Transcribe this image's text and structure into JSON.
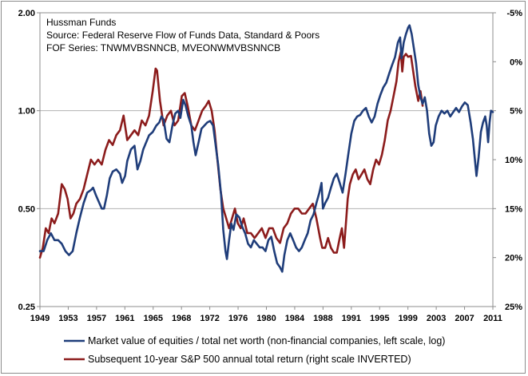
{
  "chart_data": {
    "type": "line",
    "title": "",
    "annotations": [
      "Hussman Funds",
      "Source: Federal Reserve Flow of Funds Data, Standard & Poors",
      "FOF Series: TNWMVBSNNCB, MVEONWMVBSNNCB"
    ],
    "x_ticks": [
      "1949",
      "1953",
      "1957",
      "1961",
      "1965",
      "1968",
      "1972",
      "1976",
      "1980",
      "1984",
      "1988",
      "1991",
      "1995",
      "1999",
      "2003",
      "2007",
      "2011"
    ],
    "x_range": [
      1949,
      2011.25
    ],
    "left_axis": {
      "scale": "log",
      "ticks": [
        "0.25",
        "0.50",
        "1.00",
        "2.00"
      ],
      "range": [
        0.25,
        2.0
      ]
    },
    "right_axis": {
      "scale": "linear-inverted",
      "ticks": [
        "-5%",
        "0%",
        "5%",
        "10%",
        "15%",
        "20%",
        "25%"
      ],
      "range_top": -5,
      "range_bottom": 25
    },
    "legend_position": "bottom",
    "grid": "horizontal",
    "series": [
      {
        "name": "Market value of equities / total net worth (non-financial companies, left scale, log)",
        "axis": "left",
        "color": "#1f3d7a",
        "points": [
          [
            1949.0,
            0.37
          ],
          [
            1949.5,
            0.37
          ],
          [
            1950.0,
            0.4
          ],
          [
            1950.5,
            0.42
          ],
          [
            1951.0,
            0.4
          ],
          [
            1951.5,
            0.4
          ],
          [
            1952.0,
            0.39
          ],
          [
            1952.5,
            0.37
          ],
          [
            1953.0,
            0.36
          ],
          [
            1953.5,
            0.37
          ],
          [
            1954.0,
            0.42
          ],
          [
            1954.5,
            0.47
          ],
          [
            1955.0,
            0.52
          ],
          [
            1955.5,
            0.56
          ],
          [
            1956.0,
            0.57
          ],
          [
            1956.3,
            0.58
          ],
          [
            1956.7,
            0.55
          ],
          [
            1957.0,
            0.53
          ],
          [
            1957.5,
            0.5
          ],
          [
            1957.8,
            0.5
          ],
          [
            1958.2,
            0.55
          ],
          [
            1958.6,
            0.62
          ],
          [
            1959.0,
            0.65
          ],
          [
            1959.5,
            0.66
          ],
          [
            1960.0,
            0.64
          ],
          [
            1960.3,
            0.6
          ],
          [
            1960.7,
            0.63
          ],
          [
            1961.0,
            0.7
          ],
          [
            1961.5,
            0.76
          ],
          [
            1962.0,
            0.78
          ],
          [
            1962.4,
            0.66
          ],
          [
            1962.8,
            0.7
          ],
          [
            1963.2,
            0.76
          ],
          [
            1963.6,
            0.8
          ],
          [
            1964.0,
            0.84
          ],
          [
            1964.5,
            0.86
          ],
          [
            1965.0,
            0.9
          ],
          [
            1965.4,
            0.92
          ],
          [
            1965.7,
            0.96
          ],
          [
            1966.0,
            0.94
          ],
          [
            1966.4,
            0.82
          ],
          [
            1966.8,
            0.8
          ],
          [
            1967.2,
            0.9
          ],
          [
            1967.6,
            0.98
          ],
          [
            1968.0,
            1.0
          ],
          [
            1968.3,
            0.95
          ],
          [
            1968.7,
            1.08
          ],
          [
            1969.0,
            1.04
          ],
          [
            1969.4,
            0.96
          ],
          [
            1969.8,
            0.9
          ],
          [
            1970.1,
            0.8
          ],
          [
            1970.4,
            0.73
          ],
          [
            1970.8,
            0.8
          ],
          [
            1971.2,
            0.88
          ],
          [
            1971.6,
            0.9
          ],
          [
            1972.0,
            0.92
          ],
          [
            1972.4,
            0.93
          ],
          [
            1972.8,
            0.9
          ],
          [
            1973.1,
            0.8
          ],
          [
            1973.5,
            0.68
          ],
          [
            1973.9,
            0.55
          ],
          [
            1974.2,
            0.43
          ],
          [
            1974.5,
            0.37
          ],
          [
            1974.7,
            0.35
          ],
          [
            1975.0,
            0.4
          ],
          [
            1975.3,
            0.45
          ],
          [
            1975.6,
            0.43
          ],
          [
            1976.0,
            0.48
          ],
          [
            1976.4,
            0.47
          ],
          [
            1976.8,
            0.44
          ],
          [
            1977.2,
            0.42
          ],
          [
            1977.6,
            0.39
          ],
          [
            1978.0,
            0.38
          ],
          [
            1978.4,
            0.4
          ],
          [
            1978.8,
            0.39
          ],
          [
            1979.2,
            0.38
          ],
          [
            1979.6,
            0.38
          ],
          [
            1980.0,
            0.37
          ],
          [
            1980.4,
            0.4
          ],
          [
            1980.8,
            0.41
          ],
          [
            1981.2,
            0.37
          ],
          [
            1981.6,
            0.34
          ],
          [
            1982.0,
            0.33
          ],
          [
            1982.3,
            0.32
          ],
          [
            1982.6,
            0.36
          ],
          [
            1983.0,
            0.4
          ],
          [
            1983.4,
            0.42
          ],
          [
            1983.8,
            0.4
          ],
          [
            1984.2,
            0.38
          ],
          [
            1984.6,
            0.37
          ],
          [
            1985.0,
            0.38
          ],
          [
            1985.4,
            0.4
          ],
          [
            1985.8,
            0.42
          ],
          [
            1986.2,
            0.46
          ],
          [
            1986.6,
            0.48
          ],
          [
            1987.0,
            0.52
          ],
          [
            1987.4,
            0.56
          ],
          [
            1987.7,
            0.6
          ],
          [
            1987.9,
            0.5
          ],
          [
            1988.2,
            0.52
          ],
          [
            1988.6,
            0.54
          ],
          [
            1989.0,
            0.58
          ],
          [
            1989.4,
            0.62
          ],
          [
            1989.8,
            0.64
          ],
          [
            1990.2,
            0.6
          ],
          [
            1990.6,
            0.56
          ],
          [
            1991.0,
            0.64
          ],
          [
            1991.4,
            0.74
          ],
          [
            1991.8,
            0.85
          ],
          [
            1992.2,
            0.93
          ],
          [
            1992.6,
            0.96
          ],
          [
            1993.0,
            0.97
          ],
          [
            1993.4,
            1.0
          ],
          [
            1993.8,
            1.02
          ],
          [
            1994.2,
            0.96
          ],
          [
            1994.6,
            0.92
          ],
          [
            1995.0,
            0.96
          ],
          [
            1995.4,
            1.05
          ],
          [
            1995.8,
            1.12
          ],
          [
            1996.2,
            1.18
          ],
          [
            1996.6,
            1.22
          ],
          [
            1997.0,
            1.3
          ],
          [
            1997.4,
            1.38
          ],
          [
            1997.8,
            1.46
          ],
          [
            1998.2,
            1.62
          ],
          [
            1998.5,
            1.68
          ],
          [
            1998.7,
            1.45
          ],
          [
            1999.0,
            1.62
          ],
          [
            1999.3,
            1.72
          ],
          [
            1999.6,
            1.8
          ],
          [
            1999.8,
            1.83
          ],
          [
            2000.1,
            1.72
          ],
          [
            2000.4,
            1.55
          ],
          [
            2000.7,
            1.4
          ],
          [
            2001.0,
            1.2
          ],
          [
            2001.3,
            1.1
          ],
          [
            2001.6,
            1.05
          ],
          [
            2001.9,
            1.1
          ],
          [
            2002.2,
            1.0
          ],
          [
            2002.5,
            0.85
          ],
          [
            2002.8,
            0.78
          ],
          [
            2003.1,
            0.8
          ],
          [
            2003.4,
            0.9
          ],
          [
            2003.8,
            0.96
          ],
          [
            2004.2,
            1.0
          ],
          [
            2004.6,
            0.98
          ],
          [
            2005.0,
            1.0
          ],
          [
            2005.4,
            0.96
          ],
          [
            2005.8,
            0.99
          ],
          [
            2006.2,
            1.02
          ],
          [
            2006.6,
            0.99
          ],
          [
            2007.0,
            1.03
          ],
          [
            2007.4,
            1.06
          ],
          [
            2007.8,
            1.04
          ],
          [
            2008.2,
            0.92
          ],
          [
            2008.5,
            0.82
          ],
          [
            2008.8,
            0.7
          ],
          [
            2009.0,
            0.63
          ],
          [
            2009.3,
            0.72
          ],
          [
            2009.6,
            0.86
          ],
          [
            2009.9,
            0.92
          ],
          [
            2010.2,
            0.96
          ],
          [
            2010.4,
            0.9
          ],
          [
            2010.6,
            0.8
          ],
          [
            2010.8,
            0.92
          ],
          [
            2011.0,
            1.0
          ],
          [
            2011.25,
            0.99
          ]
        ]
      },
      {
        "name": "Subsequent 10-year S&P 500 annual total return (right scale INVERTED)",
        "axis": "right",
        "color": "#8c1c1c",
        "points": [
          [
            1949.0,
            20.0
          ],
          [
            1949.4,
            19.0
          ],
          [
            1949.8,
            17.0
          ],
          [
            1950.2,
            17.5
          ],
          [
            1950.6,
            16.0
          ],
          [
            1951.0,
            16.5
          ],
          [
            1951.5,
            15.5
          ],
          [
            1952.0,
            12.5
          ],
          [
            1952.4,
            13.0
          ],
          [
            1952.8,
            14.0
          ],
          [
            1953.2,
            16.0
          ],
          [
            1953.6,
            15.5
          ],
          [
            1954.0,
            14.5
          ],
          [
            1954.5,
            14.0
          ],
          [
            1955.0,
            13.0
          ],
          [
            1955.5,
            11.5
          ],
          [
            1956.0,
            10.0
          ],
          [
            1956.5,
            10.5
          ],
          [
            1957.0,
            10.0
          ],
          [
            1957.5,
            10.5
          ],
          [
            1958.0,
            9.0
          ],
          [
            1958.5,
            8.0
          ],
          [
            1959.0,
            8.5
          ],
          [
            1959.5,
            7.5
          ],
          [
            1960.0,
            7.0
          ],
          [
            1960.5,
            5.5
          ],
          [
            1961.0,
            8.0
          ],
          [
            1961.5,
            7.5
          ],
          [
            1962.0,
            7.0
          ],
          [
            1962.5,
            7.5
          ],
          [
            1963.0,
            6.0
          ],
          [
            1963.5,
            6.5
          ],
          [
            1964.0,
            5.5
          ],
          [
            1964.5,
            3.0
          ],
          [
            1964.9,
            0.7
          ],
          [
            1965.1,
            0.9
          ],
          [
            1965.5,
            4.0
          ],
          [
            1966.0,
            6.5
          ],
          [
            1966.5,
            5.5
          ],
          [
            1967.0,
            5.0
          ],
          [
            1967.5,
            6.5
          ],
          [
            1968.0,
            6.0
          ],
          [
            1968.5,
            3.5
          ],
          [
            1968.9,
            3.2
          ],
          [
            1969.3,
            4.5
          ],
          [
            1969.8,
            6.5
          ],
          [
            1970.3,
            7.0
          ],
          [
            1970.8,
            6.0
          ],
          [
            1971.3,
            5.0
          ],
          [
            1971.8,
            4.5
          ],
          [
            1972.2,
            4.0
          ],
          [
            1972.6,
            5.0
          ],
          [
            1973.0,
            7.0
          ],
          [
            1973.4,
            10.0
          ],
          [
            1973.8,
            13.0
          ],
          [
            1974.2,
            15.0
          ],
          [
            1974.6,
            16.0
          ],
          [
            1975.0,
            17.0
          ],
          [
            1975.4,
            16.0
          ],
          [
            1975.8,
            15.0
          ],
          [
            1976.2,
            16.5
          ],
          [
            1976.6,
            17.0
          ],
          [
            1977.0,
            16.0
          ],
          [
            1977.5,
            17.5
          ],
          [
            1978.0,
            17.5
          ],
          [
            1978.5,
            18.0
          ],
          [
            1979.0,
            17.5
          ],
          [
            1979.5,
            17.0
          ],
          [
            1980.0,
            18.0
          ],
          [
            1980.5,
            17.0
          ],
          [
            1981.0,
            17.0
          ],
          [
            1981.5,
            18.0
          ],
          [
            1982.0,
            18.5
          ],
          [
            1982.5,
            17.0
          ],
          [
            1983.0,
            16.5
          ],
          [
            1983.5,
            15.5
          ],
          [
            1984.0,
            15.0
          ],
          [
            1984.5,
            15.0
          ],
          [
            1985.0,
            15.5
          ],
          [
            1985.5,
            15.5
          ],
          [
            1986.0,
            15.0
          ],
          [
            1986.5,
            14.5
          ],
          [
            1987.0,
            16.0
          ],
          [
            1987.5,
            18.0
          ],
          [
            1987.8,
            19.0
          ],
          [
            1988.2,
            19.0
          ],
          [
            1988.6,
            18.0
          ],
          [
            1989.0,
            19.0
          ],
          [
            1989.4,
            19.5
          ],
          [
            1989.8,
            19.5
          ],
          [
            1990.2,
            18.0
          ],
          [
            1990.5,
            17.0
          ],
          [
            1990.8,
            19.0
          ],
          [
            1991.0,
            17.0
          ],
          [
            1991.3,
            14.0
          ],
          [
            1991.6,
            12.5
          ],
          [
            1992.0,
            11.5
          ],
          [
            1992.4,
            11.0
          ],
          [
            1992.8,
            12.0
          ],
          [
            1993.2,
            11.5
          ],
          [
            1993.6,
            11.0
          ],
          [
            1994.0,
            12.0
          ],
          [
            1994.4,
            12.5
          ],
          [
            1994.8,
            11.0
          ],
          [
            1995.2,
            10.0
          ],
          [
            1995.6,
            10.5
          ],
          [
            1996.0,
            9.5
          ],
          [
            1996.4,
            8.0
          ],
          [
            1996.8,
            6.0
          ],
          [
            1997.2,
            5.0
          ],
          [
            1997.6,
            3.5
          ],
          [
            1998.0,
            2.0
          ],
          [
            1998.3,
            0.0
          ],
          [
            1998.6,
            -1.0
          ],
          [
            1998.8,
            1.0
          ],
          [
            1999.0,
            -0.5
          ],
          [
            1999.3,
            -0.8
          ],
          [
            1999.6,
            -0.5
          ],
          [
            2000.0,
            -0.6
          ],
          [
            2000.3,
            1.0
          ],
          [
            2000.6,
            2.5
          ],
          [
            2001.0,
            4.0
          ],
          [
            2001.3,
            3.0
          ],
          [
            2001.6,
            4.5
          ]
        ]
      }
    ]
  }
}
